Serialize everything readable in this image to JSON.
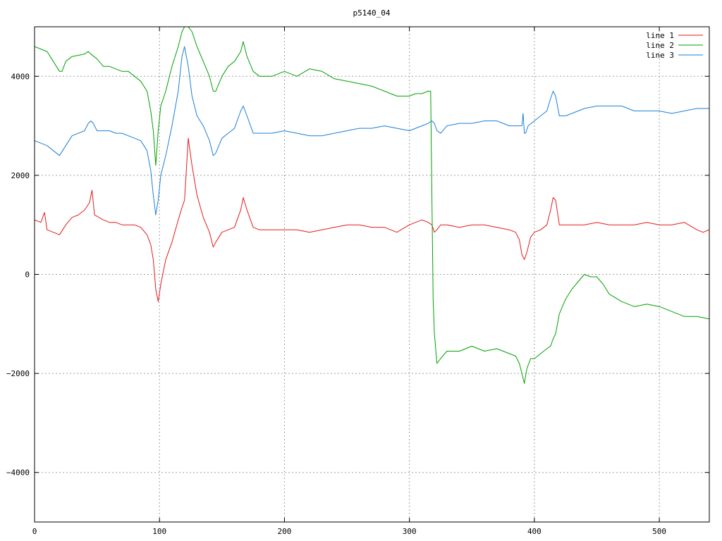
{
  "chart_data": {
    "type": "line",
    "title": "p5140_04",
    "xlabel": "",
    "ylabel": "",
    "xlim": [
      0,
      540
    ],
    "ylim": [
      -5000,
      5000
    ],
    "xticks": [
      0,
      100,
      200,
      300,
      400,
      500
    ],
    "yticks": [
      -4000,
      -2000,
      0,
      2000,
      4000
    ],
    "ytick_labels": [
      "−4000",
      "−2000",
      "0",
      "2000",
      "4000"
    ],
    "grid": true,
    "legend_position": "top-right",
    "series": [
      {
        "name": "line 1",
        "color": "#e41a1c",
        "x": [
          0,
          5,
          8,
          10,
          15,
          20,
          25,
          30,
          35,
          40,
          44,
          46,
          48,
          55,
          60,
          65,
          70,
          75,
          80,
          85,
          90,
          93,
          95,
          97,
          99,
          101,
          105,
          110,
          115,
          118,
          120,
          123,
          126,
          130,
          135,
          140,
          143,
          145,
          150,
          155,
          160,
          165,
          167,
          170,
          175,
          180,
          190,
          200,
          210,
          220,
          230,
          240,
          250,
          260,
          270,
          280,
          290,
          300,
          305,
          310,
          315,
          318,
          320,
          322,
          325,
          330,
          340,
          350,
          360,
          370,
          380,
          385,
          388,
          390,
          392,
          394,
          397,
          400,
          405,
          410,
          413,
          415,
          417,
          420,
          425,
          430,
          440,
          450,
          460,
          470,
          480,
          490,
          500,
          510,
          520,
          530,
          535,
          540
        ],
        "y": [
          1100,
          1050,
          1250,
          900,
          850,
          800,
          1000,
          1150,
          1200,
          1300,
          1450,
          1700,
          1200,
          1100,
          1050,
          1050,
          1000,
          1000,
          1000,
          950,
          800,
          600,
          300,
          -300,
          -550,
          -200,
          300,
          650,
          1100,
          1350,
          1500,
          2750,
          2200,
          1600,
          1150,
          850,
          550,
          650,
          850,
          900,
          950,
          1300,
          1550,
          1300,
          950,
          900,
          900,
          900,
          900,
          850,
          900,
          950,
          1000,
          1000,
          950,
          950,
          850,
          1000,
          1050,
          1100,
          1050,
          1000,
          850,
          900,
          1000,
          1000,
          950,
          1000,
          1000,
          950,
          900,
          850,
          700,
          400,
          300,
          450,
          750,
          850,
          900,
          1000,
          1300,
          1550,
          1500,
          1000,
          1000,
          1000,
          1000,
          1050,
          1000,
          1000,
          1000,
          1050,
          1000,
          1000,
          1050,
          900,
          850,
          900
        ]
      },
      {
        "name": "line 2",
        "color": "#00a000",
        "x": [
          0,
          5,
          10,
          15,
          20,
          22,
          25,
          30,
          40,
          43,
          45,
          50,
          55,
          60,
          65,
          70,
          75,
          80,
          85,
          90,
          93,
          95,
          97,
          99,
          101,
          105,
          110,
          115,
          118,
          120,
          123,
          126,
          130,
          135,
          140,
          143,
          145,
          150,
          155,
          160,
          165,
          167,
          170,
          175,
          180,
          190,
          200,
          210,
          220,
          230,
          240,
          250,
          260,
          270,
          280,
          290,
          300,
          305,
          310,
          315,
          317,
          318,
          319,
          320,
          322,
          325,
          330,
          340,
          350,
          360,
          370,
          380,
          385,
          388,
          390,
          392,
          394,
          397,
          400,
          405,
          410,
          413,
          415,
          417,
          420,
          425,
          430,
          435,
          440,
          445,
          450,
          455,
          460,
          470,
          480,
          490,
          500,
          510,
          520,
          530,
          540
        ],
        "y": [
          4600,
          4550,
          4500,
          4300,
          4100,
          4100,
          4300,
          4400,
          4450,
          4500,
          4450,
          4350,
          4200,
          4200,
          4150,
          4100,
          4100,
          4000,
          3900,
          3700,
          3300,
          2900,
          2200,
          2900,
          3400,
          3700,
          4200,
          4600,
          4900,
          5000,
          5000,
          4900,
          4600,
          4300,
          4000,
          3700,
          3700,
          4000,
          4200,
          4300,
          4500,
          4700,
          4400,
          4100,
          4000,
          4000,
          4100,
          4000,
          4150,
          4100,
          3950,
          3900,
          3850,
          3800,
          3700,
          3600,
          3600,
          3650,
          3650,
          3700,
          3700,
          1500,
          -500,
          -1200,
          -1800,
          -1700,
          -1550,
          -1550,
          -1450,
          -1550,
          -1500,
          -1600,
          -1650,
          -1800,
          -2000,
          -2200,
          -1900,
          -1700,
          -1700,
          -1600,
          -1500,
          -1450,
          -1300,
          -1200,
          -800,
          -500,
          -300,
          -150,
          0,
          -50,
          -50,
          -200,
          -400,
          -550,
          -650,
          -600,
          -650,
          -750,
          -850,
          -850,
          -900
        ]
      },
      {
        "name": "line 3",
        "color": "#1a7fd9",
        "x": [
          0,
          5,
          10,
          15,
          20,
          25,
          30,
          40,
          43,
          45,
          47,
          50,
          55,
          60,
          65,
          70,
          75,
          80,
          85,
          90,
          93,
          95,
          97,
          99,
          101,
          105,
          110,
          115,
          118,
          120,
          123,
          126,
          130,
          135,
          140,
          143,
          145,
          150,
          155,
          160,
          165,
          167,
          170,
          175,
          180,
          190,
          200,
          210,
          220,
          230,
          240,
          250,
          260,
          270,
          280,
          290,
          300,
          305,
          310,
          315,
          318,
          320,
          322,
          325,
          330,
          340,
          350,
          360,
          370,
          380,
          385,
          388,
          390,
          391,
          392,
          393,
          395,
          400,
          405,
          410,
          413,
          415,
          417,
          420,
          425,
          430,
          440,
          450,
          460,
          470,
          480,
          490,
          500,
          510,
          520,
          530,
          540
        ],
        "y": [
          2700,
          2650,
          2600,
          2500,
          2400,
          2600,
          2800,
          2900,
          3050,
          3100,
          3050,
          2900,
          2900,
          2900,
          2850,
          2850,
          2800,
          2750,
          2700,
          2500,
          2100,
          1600,
          1200,
          1500,
          2000,
          2400,
          3000,
          3700,
          4400,
          4600,
          4200,
          3600,
          3200,
          3000,
          2700,
          2400,
          2450,
          2750,
          2850,
          2950,
          3300,
          3400,
          3200,
          2850,
          2850,
          2850,
          2900,
          2850,
          2800,
          2800,
          2850,
          2900,
          2950,
          2950,
          3000,
          2950,
          2900,
          2950,
          3000,
          3050,
          3100,
          3050,
          2900,
          2850,
          3000,
          3050,
          3050,
          3100,
          3100,
          3000,
          3000,
          3000,
          3000,
          3250,
          2850,
          2850,
          3000,
          3100,
          3200,
          3300,
          3550,
          3700,
          3600,
          3200,
          3200,
          3250,
          3350,
          3400,
          3400,
          3400,
          3300,
          3300,
          3300,
          3250,
          3300,
          3350,
          3350
        ]
      }
    ]
  }
}
